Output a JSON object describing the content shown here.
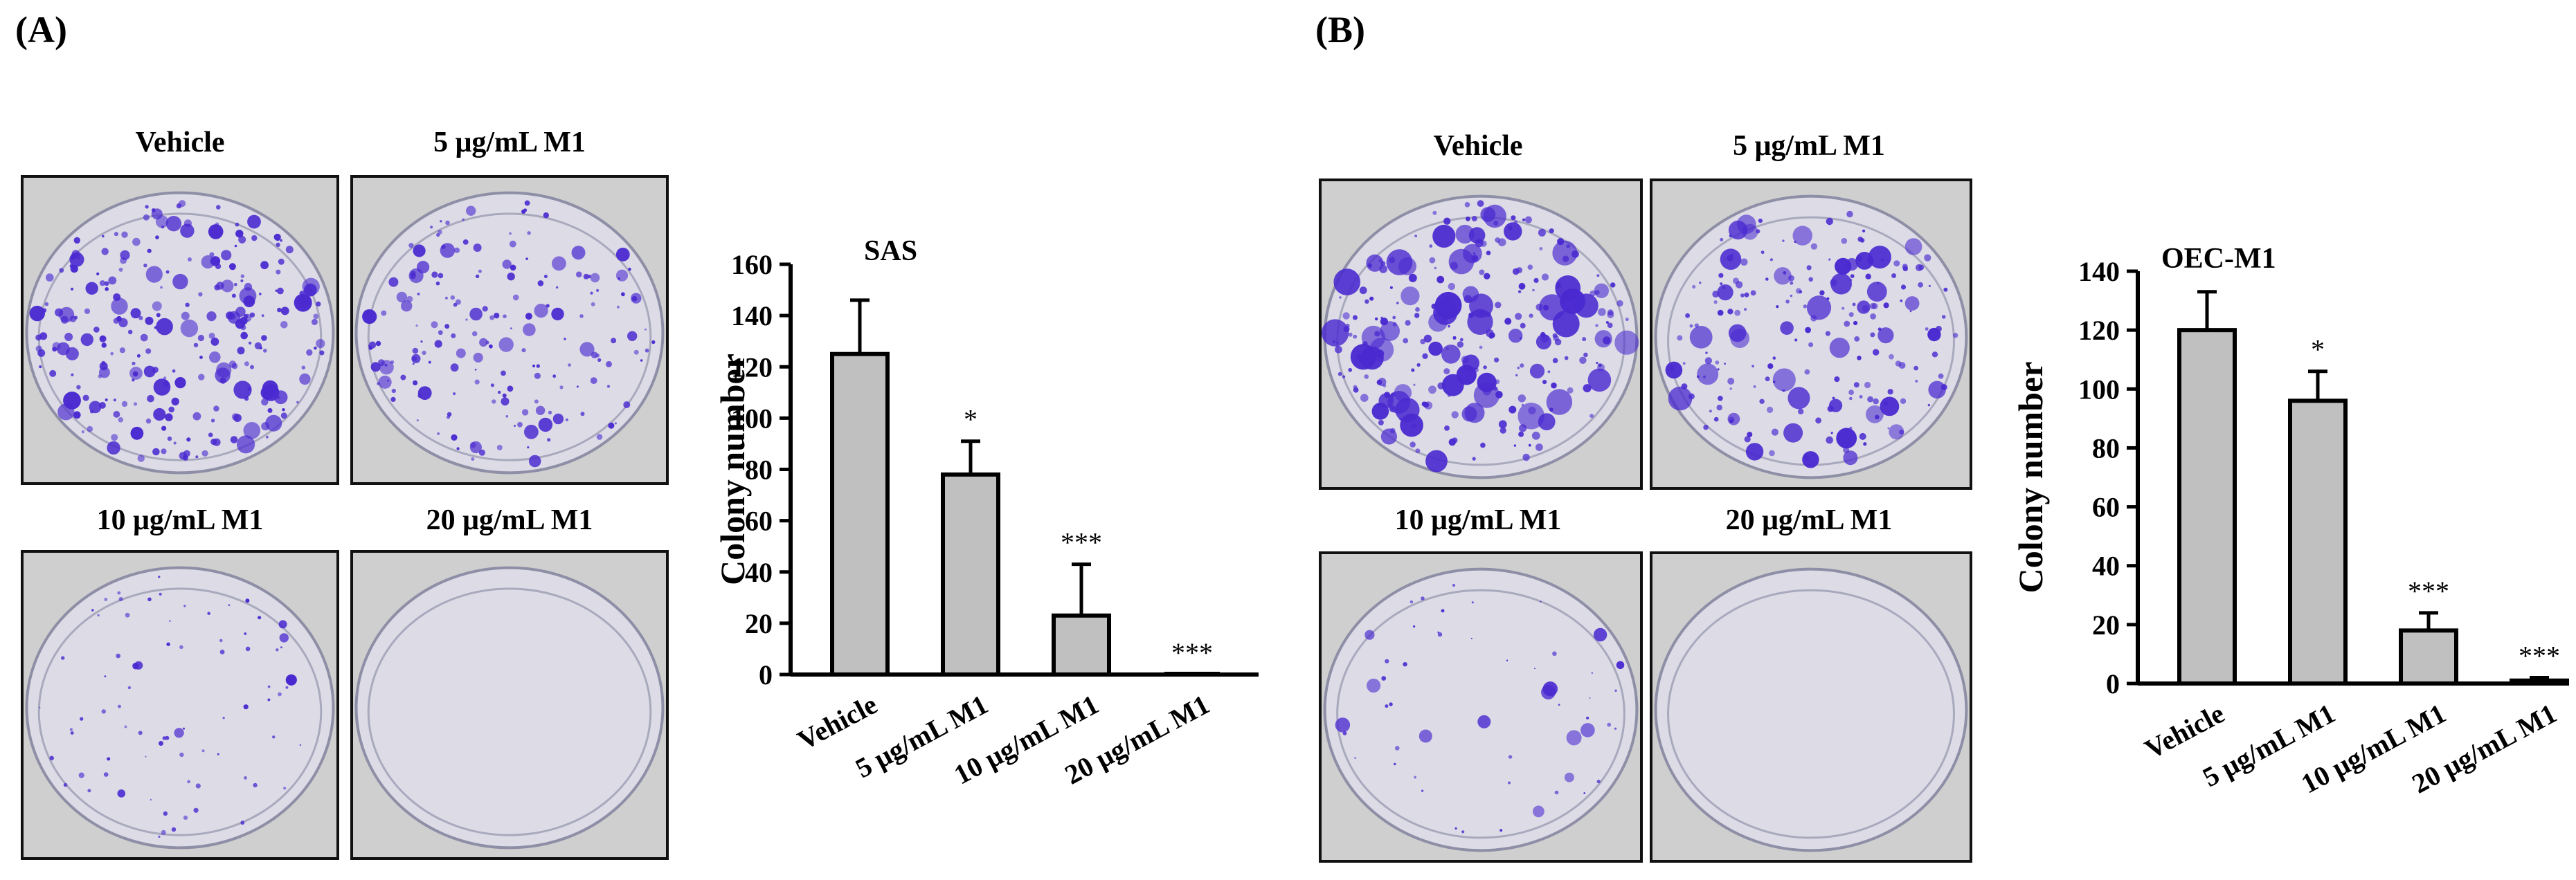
{
  "panels": [
    {
      "label": "(A)",
      "photos": [
        "Vehicle",
        "5 μg/mL M1",
        "10 μg/mL M1",
        "20 μg/mL M1"
      ],
      "photo_content": "crystal violet stained colony culture dishes",
      "colony_density": [
        1.0,
        0.7,
        0.3,
        0.0
      ]
    },
    {
      "label": "(B)",
      "photos": [
        "Vehicle",
        "5 μg/mL M1",
        "10 μg/mL M1",
        "20 μg/mL M1"
      ],
      "photo_content": "crystal violet stained colony culture dishes",
      "colony_density": [
        1.0,
        0.8,
        0.2,
        0.0
      ]
    }
  ],
  "colors": {
    "bar_fill": "#c0c0c0",
    "bar_stroke": "#000000",
    "stain": "#4a2ad0",
    "dish_bg": "#cfcfcf"
  },
  "chart_data": [
    {
      "type": "bar",
      "title": "SAS",
      "categories": [
        "Vehicle",
        "5 μg/mL M1",
        "10 μg/mL M1",
        "20 μg/mL M1"
      ],
      "values": [
        125,
        78,
        23,
        0
      ],
      "errors": [
        21,
        13,
        20,
        0
      ],
      "significance": [
        "",
        "*",
        "***",
        "***"
      ],
      "xlabel": "",
      "ylabel": "Colony number",
      "ylim": [
        0,
        160
      ],
      "yticks": [
        0,
        20,
        40,
        60,
        80,
        100,
        120,
        140,
        160
      ],
      "grid": false,
      "legend": "none"
    },
    {
      "type": "bar",
      "title": "OEC-M1",
      "categories": [
        "Vehicle",
        "5 μg/mL M1",
        "10 μg/mL M1",
        "20 μg/mL M1"
      ],
      "values": [
        120,
        96,
        18,
        1
      ],
      "errors": [
        13,
        10,
        6,
        1
      ],
      "significance": [
        "",
        "*",
        "***",
        "***"
      ],
      "xlabel": "",
      "ylabel": "Colony number",
      "ylim": [
        0,
        140
      ],
      "yticks": [
        0,
        20,
        40,
        60,
        80,
        100,
        120,
        140
      ],
      "grid": false,
      "legend": "none"
    }
  ]
}
